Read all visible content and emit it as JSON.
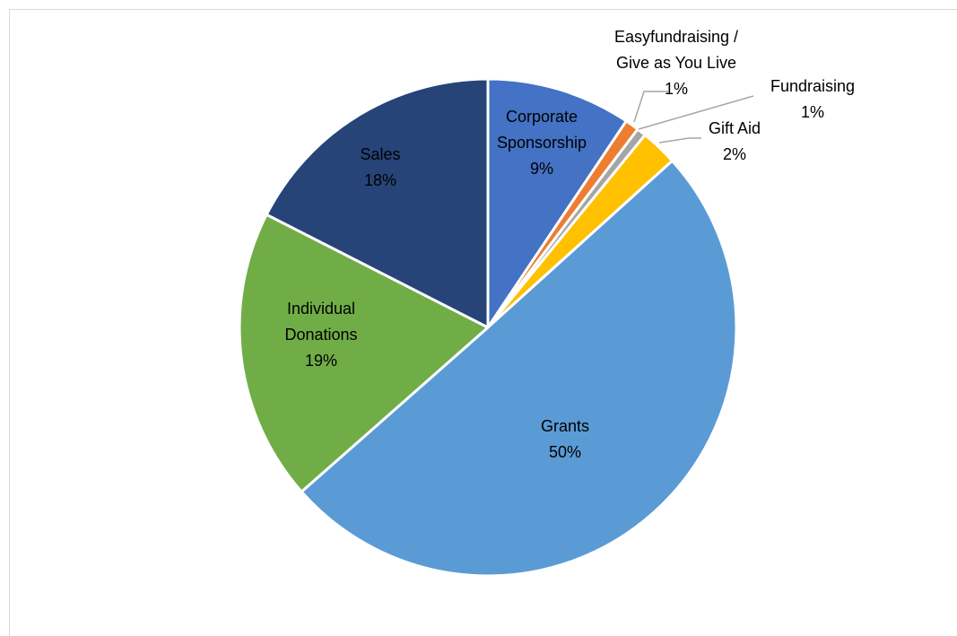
{
  "chart_data": {
    "type": "pie",
    "start": "top",
    "direction": "clockwise",
    "legend": "none",
    "slices": [
      {
        "label": "Corporate Sponsorship",
        "value": 9.4,
        "display": "9%",
        "color": "#4472C4",
        "text_color": "#000000",
        "lines": [
          "Corporate",
          "Sponsorship",
          "9%"
        ]
      },
      {
        "label": "Easyfundraising / Give as You Live",
        "value": 0.9,
        "display": "1%",
        "color": "#ED7D31",
        "text_color": "#000000",
        "lines": [
          "Easyfundraising /",
          "Give as You Live",
          "1%"
        ]
      },
      {
        "label": "Fundraising",
        "value": 0.6,
        "display": "1%",
        "color": "#A5A5A5",
        "text_color": "#000000",
        "lines": [
          "Fundraising",
          "1%"
        ]
      },
      {
        "label": "Gift Aid",
        "value": 2.4,
        "display": "2%",
        "color": "#FFC000",
        "text_color": "#000000",
        "lines": [
          "Gift Aid",
          "2%"
        ]
      },
      {
        "label": "Grants",
        "value": 50.2,
        "display": "50%",
        "color": "#5B9BD5",
        "text_color": "#000000",
        "lines": [
          "Grants",
          "50%"
        ]
      },
      {
        "label": "Individual Donations",
        "value": 19.0,
        "display": "19%",
        "color": "#70AD47",
        "text_color": "#000000",
        "lines": [
          "Individual",
          "Donations",
          "19%"
        ]
      },
      {
        "label": "Sales",
        "value": 17.5,
        "display": "18%",
        "color": "#264478",
        "text_color": "#ffffff",
        "lines": [
          "Sales",
          "18%"
        ]
      }
    ],
    "leader_line_color": "#A6A6A6",
    "border_color": "#ffffff"
  }
}
